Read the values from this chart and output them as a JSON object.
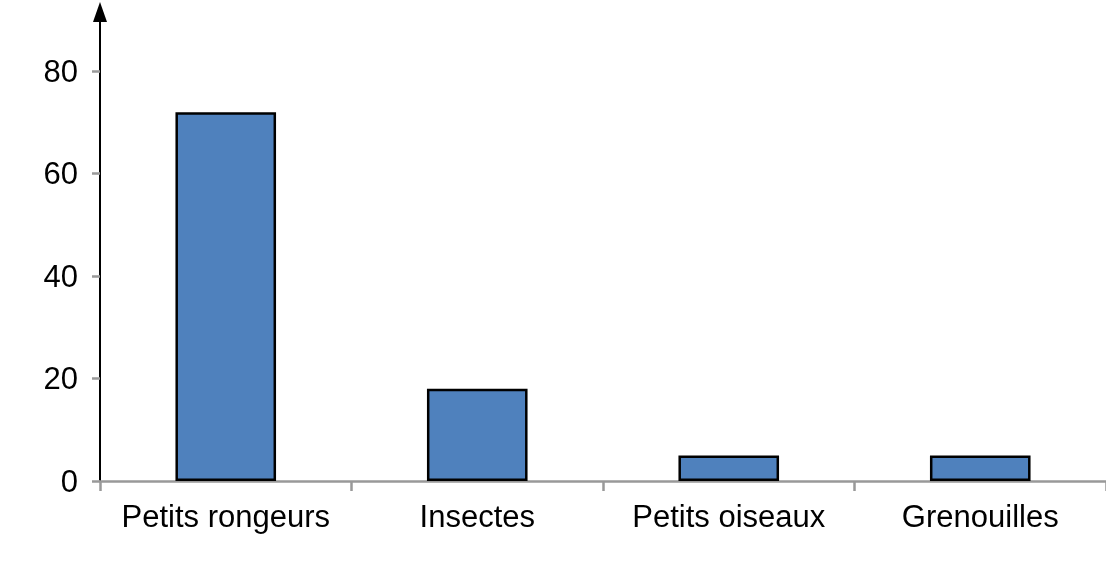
{
  "chart_data": {
    "type": "bar",
    "categories": [
      "Petits rongeurs",
      "Insectes",
      "Petits oiseaux",
      "Grenouilles"
    ],
    "values": [
      72,
      18,
      5,
      5
    ],
    "color": "#4f81bd",
    "ylim": [
      0,
      90
    ],
    "yticks": [
      0,
      20,
      40,
      60,
      80
    ],
    "grid": false
  }
}
